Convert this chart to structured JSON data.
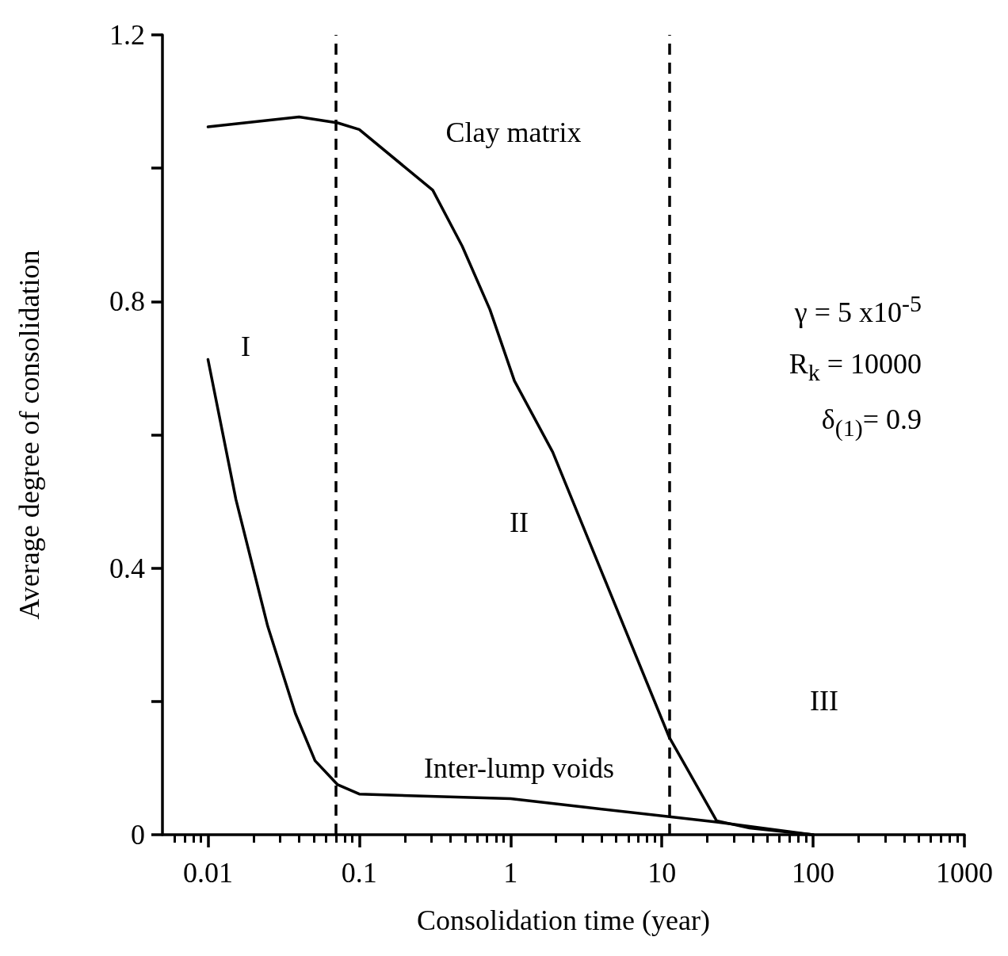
{
  "chart_data": {
    "type": "line",
    "xlabel": "Consolidation time (year)",
    "ylabel": "Average degree of consolidation",
    "log": "x",
    "xlim": [
      0.005,
      1000
    ],
    "xticks": [
      0.01,
      0.1,
      1,
      10,
      100,
      1000
    ],
    "ylim": [
      0,
      1.2
    ],
    "yticks": [
      0,
      {
        "value": 0.2,
        "label": null
      },
      0.4,
      {
        "value": 0.6,
        "label": null
      },
      0.8,
      {
        "value": 1.0,
        "label": null
      },
      1.2
    ],
    "grid": false,
    "marker": "none",
    "line_style": "solid",
    "series": [
      {
        "color": "#000000",
        "x": [
          0.01,
          0.04,
          0.072,
          0.1,
          0.306,
          0.479,
          0.73,
          1.06,
          1.9,
          11.2,
          23,
          38,
          100
        ],
        "values": [
          1.062,
          1.077,
          1.068,
          1.058,
          0.967,
          0.883,
          0.788,
          0.681,
          0.574,
          0.146,
          0.021,
          0.01,
          0
        ]
      },
      {
        "color": "#000000",
        "x": [
          0.01,
          0.0153,
          0.0248,
          0.0378,
          0.051,
          0.072,
          0.1,
          1,
          11.2,
          23,
          100
        ],
        "values": [
          0.713,
          0.503,
          0.313,
          0.182,
          0.111,
          0.075,
          0.061,
          0.054,
          0.027,
          0.019,
          0
        ]
      }
    ],
    "ref_lines": [
      {
        "axis": "x",
        "value": 0.072,
        "color": "#000000",
        "line_style": "dashed"
      },
      {
        "axis": "x",
        "value": 11.2,
        "color": "#000000",
        "line_style": "dashed"
      }
    ],
    "annotations": [
      "Clay matrix",
      "Inter-lump voids",
      "I",
      "II",
      "III",
      "γ = 5 x10$^{-5}$",
      "R$_{k}$ = 10000",
      "δ$_{(1)}$= 0.9"
    ]
  }
}
